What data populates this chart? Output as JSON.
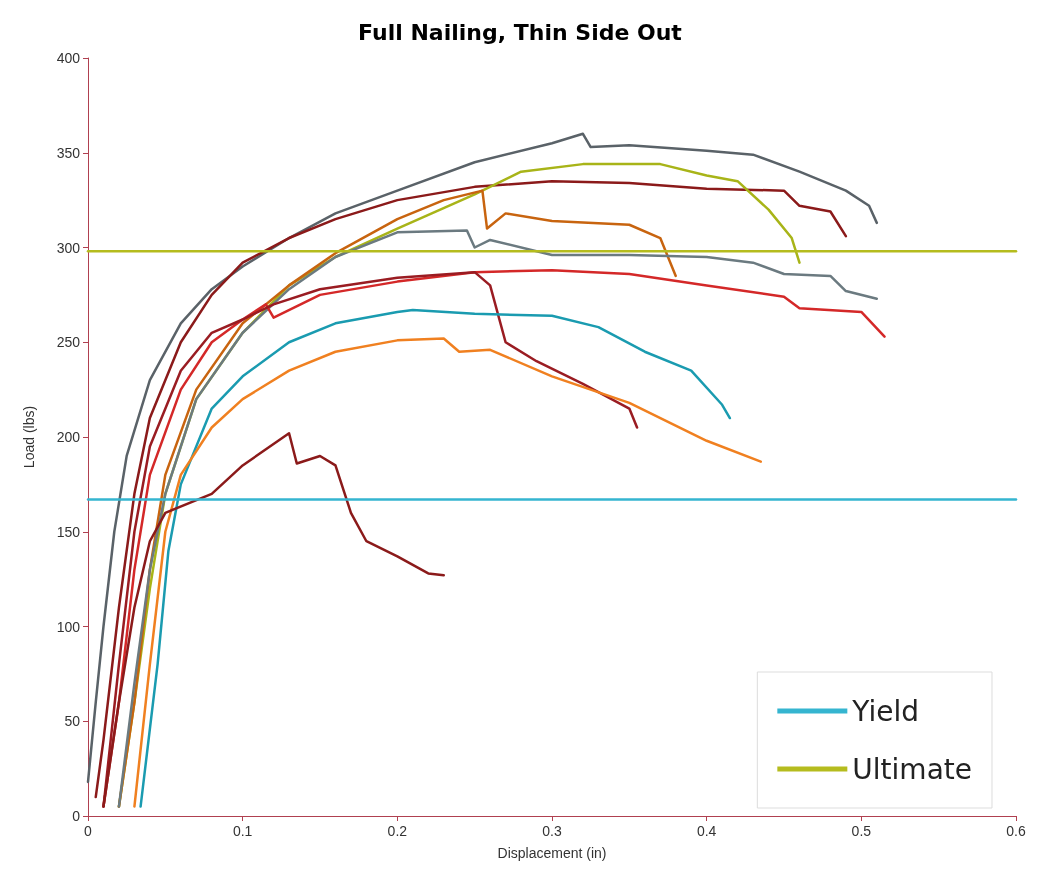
{
  "chart_data": {
    "type": "line",
    "title": "Full Nailing, Thin Side Out",
    "xlabel": "Displacement (in)",
    "ylabel": "Load (lbs)",
    "xlim": [
      0,
      0.6
    ],
    "xticks": [
      0,
      0.1,
      0.2,
      0.3,
      0.4,
      0.5,
      0.6
    ],
    "ylim": [
      0,
      400
    ],
    "yticks": [
      0,
      50,
      100,
      150,
      200,
      250,
      300,
      350,
      400
    ],
    "grid": false,
    "legend": "bottom right",
    "marker": "none",
    "line_style": "solid",
    "series": [
      {
        "color": "#5a6268",
        "x": [
          0,
          0.005,
          0.01,
          0.017,
          0.025,
          0.04,
          0.06,
          0.08,
          0.1,
          0.13,
          0.16,
          0.2,
          0.25,
          0.3,
          0.32,
          0.325,
          0.35,
          0.4,
          0.43,
          0.46,
          0.49,
          0.505,
          0.51
        ],
        "values": [
          18,
          60,
          100,
          150,
          190,
          230,
          260,
          278,
          290,
          305,
          318,
          330,
          345,
          355,
          360,
          353,
          354,
          351,
          349,
          340,
          330,
          322,
          313
        ]
      },
      {
        "color": "#8b1a1a",
        "x": [
          0.005,
          0.01,
          0.02,
          0.03,
          0.04,
          0.06,
          0.08,
          0.1,
          0.13,
          0.16,
          0.2,
          0.25,
          0.3,
          0.35,
          0.4,
          0.45,
          0.46,
          0.48,
          0.49
        ],
        "values": [
          10,
          40,
          110,
          170,
          210,
          250,
          275,
          292,
          305,
          315,
          325,
          332,
          335,
          334,
          331,
          330,
          322,
          319,
          306
        ]
      },
      {
        "color": "#a8b418",
        "x": [
          0.02,
          0.03,
          0.04,
          0.05,
          0.07,
          0.1,
          0.13,
          0.16,
          0.2,
          0.25,
          0.28,
          0.32,
          0.37,
          0.4,
          0.42,
          0.44,
          0.455,
          0.46
        ],
        "values": [
          5,
          60,
          120,
          170,
          220,
          255,
          280,
          295,
          310,
          328,
          340,
          344,
          344,
          338,
          335,
          320,
          305,
          292
        ]
      },
      {
        "color": "#c8640f",
        "x": [
          0.02,
          0.03,
          0.04,
          0.05,
          0.07,
          0.1,
          0.13,
          0.16,
          0.2,
          0.23,
          0.255,
          0.258,
          0.27,
          0.3,
          0.35,
          0.37,
          0.38
        ],
        "values": [
          5,
          60,
          130,
          180,
          225,
          260,
          280,
          297,
          315,
          325,
          330,
          310,
          318,
          314,
          312,
          305,
          285
        ]
      },
      {
        "color": "#6b7a80",
        "x": [
          0.02,
          0.03,
          0.04,
          0.05,
          0.07,
          0.1,
          0.13,
          0.16,
          0.2,
          0.245,
          0.25,
          0.26,
          0.3,
          0.35,
          0.4,
          0.43,
          0.45,
          0.48,
          0.49,
          0.51
        ],
        "values": [
          5,
          70,
          130,
          170,
          220,
          255,
          278,
          295,
          308,
          309,
          300,
          304,
          296,
          296,
          295,
          292,
          286,
          285,
          277,
          273
        ]
      },
      {
        "color": "#d42828",
        "x": [
          0.01,
          0.02,
          0.03,
          0.04,
          0.06,
          0.08,
          0.1,
          0.115,
          0.12,
          0.15,
          0.2,
          0.25,
          0.3,
          0.35,
          0.4,
          0.45,
          0.46,
          0.5,
          0.515
        ],
        "values": [
          5,
          60,
          130,
          180,
          225,
          250,
          262,
          270,
          263,
          275,
          282,
          287,
          288,
          286,
          280,
          274,
          268,
          266,
          253
        ]
      },
      {
        "color": "#9a1c22",
        "x": [
          0.01,
          0.02,
          0.03,
          0.04,
          0.06,
          0.08,
          0.1,
          0.12,
          0.15,
          0.2,
          0.25,
          0.26,
          0.27,
          0.29,
          0.32,
          0.35,
          0.355
        ],
        "values": [
          5,
          80,
          150,
          195,
          235,
          255,
          262,
          270,
          278,
          284,
          287,
          280,
          250,
          240,
          228,
          215,
          205
        ]
      },
      {
        "color": "#1a9bb0",
        "x": [
          0.034,
          0.045,
          0.052,
          0.06,
          0.08,
          0.1,
          0.13,
          0.16,
          0.2,
          0.21,
          0.25,
          0.3,
          0.33,
          0.36,
          0.39,
          0.41,
          0.415
        ],
        "values": [
          5,
          80,
          140,
          175,
          215,
          232,
          250,
          260,
          266,
          267,
          265,
          264,
          258,
          245,
          235,
          217,
          210
        ]
      },
      {
        "color": "#f08020",
        "x": [
          0.03,
          0.04,
          0.05,
          0.06,
          0.08,
          0.1,
          0.13,
          0.16,
          0.2,
          0.23,
          0.24,
          0.26,
          0.3,
          0.35,
          0.4,
          0.435
        ],
        "values": [
          5,
          80,
          150,
          180,
          205,
          220,
          235,
          245,
          251,
          252,
          245,
          246,
          232,
          218,
          198,
          187
        ]
      },
      {
        "color": "#8b1a1a",
        "x": [
          0.01,
          0.02,
          0.03,
          0.04,
          0.05,
          0.08,
          0.1,
          0.13,
          0.135,
          0.15,
          0.16,
          0.17,
          0.18,
          0.2,
          0.22,
          0.23
        ],
        "values": [
          5,
          60,
          110,
          145,
          160,
          170,
          185,
          202,
          186,
          190,
          185,
          160,
          145,
          137,
          128,
          127
        ]
      },
      {
        "name": "Yield",
        "color": "#35b5d0",
        "x": [
          0,
          0.6
        ],
        "values": [
          167,
          167
        ]
      },
      {
        "name": "Ultimate",
        "color": "#b5bc1e",
        "x": [
          0,
          0.6
        ],
        "values": [
          298,
          298
        ]
      }
    ]
  }
}
